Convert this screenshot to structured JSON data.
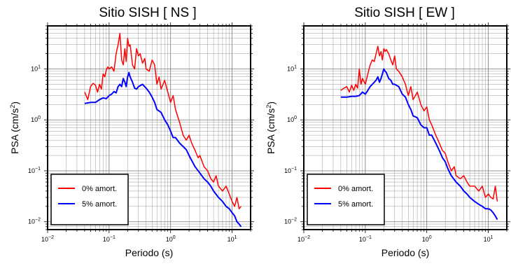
{
  "chart_data": [
    {
      "type": "line",
      "title": "Sitio SISH [ NS ]",
      "xlabel": "Periodo (s)",
      "ylabel": "PSA (cm/s2)",
      "xscale": "log",
      "yscale": "log",
      "xlim": [
        0.01,
        20
      ],
      "ylim": [
        0.007,
        70
      ],
      "grid": true,
      "legend_position": "bottom-left",
      "x_ticks": [
        {
          "base": "10",
          "exp": "−2"
        },
        {
          "base": "10",
          "exp": "−1"
        },
        {
          "base": "10",
          "exp": "0"
        },
        {
          "base": "10",
          "exp": "1"
        }
      ],
      "y_ticks": [
        {
          "base": "10",
          "exp": "−2"
        },
        {
          "base": "10",
          "exp": "−1"
        },
        {
          "base": "10",
          "exp": "0"
        },
        {
          "base": "10",
          "exp": "1"
        }
      ],
      "series": [
        {
          "name": "0% amort.",
          "color": "#ff0000",
          "x": [
            0.04,
            0.045,
            0.05,
            0.055,
            0.06,
            0.065,
            0.07,
            0.075,
            0.08,
            0.085,
            0.09,
            0.095,
            0.1,
            0.11,
            0.12,
            0.13,
            0.14,
            0.15,
            0.16,
            0.17,
            0.18,
            0.19,
            0.2,
            0.21,
            0.22,
            0.24,
            0.26,
            0.28,
            0.3,
            0.32,
            0.35,
            0.38,
            0.4,
            0.45,
            0.5,
            0.55,
            0.6,
            0.65,
            0.7,
            0.8,
            0.9,
            1.0,
            1.1,
            1.2,
            1.4,
            1.6,
            1.8,
            2,
            2.2,
            2.5,
            2.8,
            3,
            3.5,
            4,
            4.5,
            5,
            5.5,
            6,
            7,
            8,
            9,
            10,
            11,
            12,
            13,
            14
          ],
          "y": [
            3.5,
            2.5,
            4.5,
            5.2,
            4.8,
            3.5,
            5.0,
            4.0,
            8.0,
            7.0,
            9.5,
            11,
            10,
            11,
            9,
            20,
            30,
            50,
            15,
            12,
            25,
            14,
            40,
            28,
            30,
            12,
            10,
            25,
            18,
            20,
            13,
            16,
            10,
            9,
            15,
            12,
            5,
            7,
            4,
            6,
            3.5,
            2.2,
            3.0,
            1.6,
            0.9,
            0.5,
            0.4,
            0.5,
            0.35,
            0.25,
            0.18,
            0.2,
            0.12,
            0.1,
            0.07,
            0.06,
            0.08,
            0.05,
            0.04,
            0.05,
            0.035,
            0.025,
            0.02,
            0.03,
            0.018,
            0.02
          ]
        },
        {
          "name": "5% amort.",
          "color": "#0000ff",
          "x": [
            0.04,
            0.05,
            0.06,
            0.07,
            0.08,
            0.09,
            0.1,
            0.11,
            0.12,
            0.13,
            0.14,
            0.15,
            0.16,
            0.17,
            0.18,
            0.19,
            0.2,
            0.21,
            0.22,
            0.24,
            0.26,
            0.28,
            0.3,
            0.35,
            0.4,
            0.45,
            0.5,
            0.55,
            0.6,
            0.7,
            0.8,
            0.9,
            1.0,
            1.1,
            1.2,
            1.4,
            1.6,
            1.8,
            2,
            2.2,
            2.5,
            3,
            3.5,
            4,
            4.5,
            5,
            6,
            7,
            8,
            9,
            10,
            11,
            12,
            13,
            14
          ],
          "y": [
            2.1,
            2.2,
            2.2,
            2.5,
            2.7,
            2.6,
            3.0,
            3.2,
            3.6,
            3.4,
            4.5,
            5.0,
            4.5,
            6.5,
            5.5,
            4.5,
            7.0,
            8.5,
            7.0,
            5.5,
            4.2,
            4.0,
            4.5,
            5.0,
            4.2,
            3.5,
            2.8,
            2.2,
            1.6,
            1.4,
            1.0,
            0.8,
            0.6,
            0.45,
            0.45,
            0.35,
            0.3,
            0.26,
            0.2,
            0.16,
            0.12,
            0.09,
            0.07,
            0.06,
            0.05,
            0.04,
            0.03,
            0.025,
            0.02,
            0.018,
            0.015,
            0.013,
            0.01,
            0.009,
            0.008
          ]
        }
      ]
    },
    {
      "type": "line",
      "title": "Sitio SISH [ EW ]",
      "xlabel": "Periodo (s)",
      "ylabel": "PSA (cm/s2)",
      "xscale": "log",
      "yscale": "log",
      "xlim": [
        0.01,
        20
      ],
      "ylim": [
        0.007,
        70
      ],
      "grid": true,
      "legend_position": "bottom-left",
      "x_ticks": [
        {
          "base": "10",
          "exp": "−2"
        },
        {
          "base": "10",
          "exp": "−1"
        },
        {
          "base": "10",
          "exp": "0"
        },
        {
          "base": "10",
          "exp": "1"
        }
      ],
      "y_ticks": [
        {
          "base": "10",
          "exp": "−2"
        },
        {
          "base": "10",
          "exp": "−1"
        },
        {
          "base": "10",
          "exp": "0"
        },
        {
          "base": "10",
          "exp": "1"
        }
      ],
      "series": [
        {
          "name": "0% amort.",
          "color": "#ff0000",
          "x": [
            0.04,
            0.045,
            0.05,
            0.055,
            0.06,
            0.065,
            0.07,
            0.075,
            0.08,
            0.085,
            0.09,
            0.1,
            0.11,
            0.12,
            0.13,
            0.14,
            0.15,
            0.16,
            0.17,
            0.18,
            0.19,
            0.2,
            0.21,
            0.22,
            0.24,
            0.26,
            0.28,
            0.3,
            0.32,
            0.35,
            0.4,
            0.45,
            0.5,
            0.55,
            0.6,
            0.7,
            0.8,
            0.9,
            1.0,
            1.1,
            1.2,
            1.4,
            1.6,
            1.8,
            2,
            2.2,
            2.5,
            2.8,
            3,
            3.5,
            4,
            4.5,
            5,
            6,
            7,
            8,
            9,
            10,
            11,
            12,
            13,
            14
          ],
          "y": [
            3.8,
            4.2,
            4.5,
            3.5,
            4.8,
            3.8,
            5.0,
            4.2,
            10,
            5.0,
            6.5,
            5,
            8,
            12,
            15,
            14,
            20,
            28,
            18,
            22,
            15,
            25,
            22,
            24,
            20,
            15,
            12,
            18,
            10,
            9,
            7,
            5,
            3,
            4.5,
            2.5,
            3.5,
            2.0,
            1.5,
            1.8,
            1.0,
            0.8,
            0.5,
            0.35,
            0.25,
            0.22,
            0.15,
            0.1,
            0.12,
            0.08,
            0.07,
            0.08,
            0.06,
            0.05,
            0.05,
            0.04,
            0.05,
            0.03,
            0.035,
            0.03,
            0.028,
            0.05,
            0.025
          ]
        },
        {
          "name": "5% amort.",
          "color": "#0000ff",
          "x": [
            0.04,
            0.05,
            0.06,
            0.07,
            0.08,
            0.09,
            0.1,
            0.11,
            0.12,
            0.13,
            0.14,
            0.15,
            0.16,
            0.17,
            0.18,
            0.19,
            0.2,
            0.21,
            0.22,
            0.24,
            0.26,
            0.28,
            0.3,
            0.35,
            0.4,
            0.45,
            0.5,
            0.55,
            0.6,
            0.7,
            0.8,
            0.9,
            1.0,
            1.1,
            1.2,
            1.4,
            1.6,
            1.8,
            2,
            2.2,
            2.5,
            3,
            3.5,
            4,
            4.5,
            5,
            6,
            7,
            8,
            9,
            10,
            11,
            12,
            13,
            14
          ],
          "y": [
            2.8,
            2.8,
            2.9,
            2.9,
            3.0,
            3.5,
            3.2,
            3.8,
            4.5,
            5.0,
            5.5,
            6.0,
            7.0,
            5.5,
            6.5,
            8.0,
            10,
            9,
            8.5,
            6.5,
            6.0,
            5.0,
            5.0,
            4.5,
            3.2,
            2.8,
            2.0,
            1.6,
            1.2,
            1.1,
            0.8,
            0.7,
            0.7,
            0.5,
            0.5,
            0.35,
            0.25,
            0.18,
            0.15,
            0.11,
            0.08,
            0.06,
            0.05,
            0.04,
            0.035,
            0.03,
            0.025,
            0.022,
            0.02,
            0.018,
            0.018,
            0.017,
            0.015,
            0.013,
            0.011
          ]
        }
      ]
    }
  ]
}
